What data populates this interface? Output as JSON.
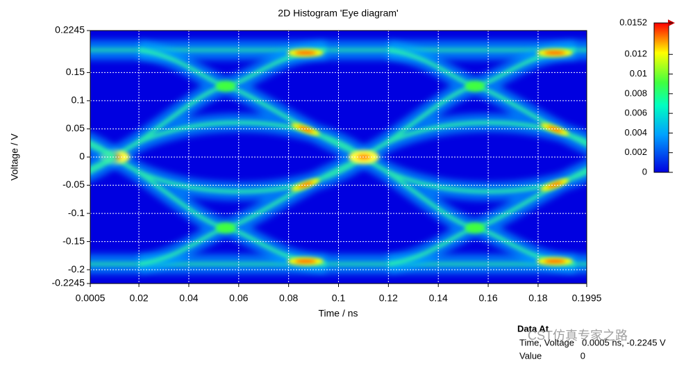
{
  "chart_data": {
    "type": "heatmap",
    "title": "2D Histogram 'Eye diagram'",
    "xlabel": "Time / ns",
    "ylabel": "Voltage / V",
    "xlim": [
      0.0005,
      0.1995
    ],
    "xticks": [
      0.0005,
      0.02,
      0.04,
      0.06,
      0.08,
      0.1,
      0.12,
      0.14,
      0.16,
      0.18,
      0.1995
    ],
    "ylim": [
      -0.2245,
      0.2245
    ],
    "yticks": [
      -0.2245,
      -0.2,
      -0.15,
      -0.1,
      -0.05,
      0,
      0.05,
      0.1,
      0.15,
      0.2245
    ],
    "grid": true,
    "colorbar": {
      "lim": [
        0,
        0.0152
      ],
      "ticks": [
        0,
        0.002,
        0.004,
        0.006,
        0.008,
        0.01,
        0.012,
        0.0152
      ]
    }
  },
  "data_at": {
    "title": "Data At",
    "row1_label": "Time, Voltage",
    "row1_value": "0.0005 ns, -0.2245 V",
    "row2_label": "Value",
    "row2_value": 0
  },
  "watermark": "CST仿真专家之路"
}
